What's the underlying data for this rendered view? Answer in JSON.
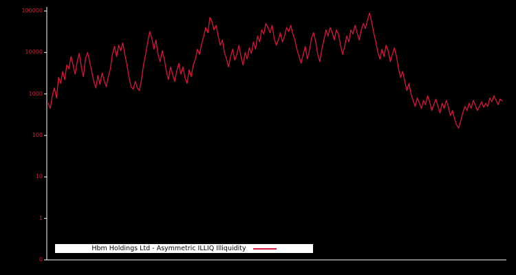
{
  "chart_data": {
    "type": "line",
    "title": "",
    "legend_label": "Hbm Holdings Ltd - Asymmetric ILLIQ Illiquidity",
    "legend_position": "bottom-left",
    "grid": false,
    "y_scale": "log",
    "ylim": [
      0.1,
      100000
    ],
    "y_tick_labels": [
      "100000",
      "10000",
      "1000",
      "100",
      "10",
      "1",
      "0"
    ],
    "y_tick_values": [
      100000,
      10000,
      1000,
      100,
      10,
      1,
      0.1
    ],
    "x_tick_labels": [],
    "xlabel": "",
    "ylabel": "",
    "colors": {
      "background": "#000000",
      "line": "#dc143c",
      "tick_label": "#d42032",
      "axis": "#ffffff",
      "legend_bg": "#ffffff",
      "legend_text": "#000000"
    },
    "values": [
      600,
      450,
      900,
      1400,
      800,
      2500,
      1800,
      3500,
      2200,
      5000,
      4000,
      8000,
      5000,
      3000,
      6000,
      9500,
      4500,
      2600,
      7000,
      10000,
      6000,
      3500,
      2000,
      1400,
      2800,
      1700,
      3200,
      2100,
      1500,
      2600,
      4000,
      9000,
      14000,
      8000,
      15000,
      11000,
      17000,
      9000,
      5000,
      2500,
      1500,
      1300,
      2000,
      1400,
      1200,
      2200,
      5000,
      9000,
      18000,
      32000,
      22000,
      12000,
      20000,
      9000,
      6000,
      11000,
      7000,
      3500,
      2200,
      4500,
      3000,
      2000,
      3500,
      5500,
      3000,
      4500,
      2500,
      1800,
      3800,
      2600,
      5000,
      7000,
      12000,
      9000,
      16000,
      24000,
      40000,
      30000,
      70000,
      55000,
      35000,
      45000,
      25000,
      15000,
      20000,
      10000,
      7000,
      4500,
      8000,
      12000,
      6500,
      9000,
      15000,
      8000,
      5000,
      10000,
      7000,
      13000,
      9500,
      18000,
      12000,
      25000,
      18000,
      35000,
      28000,
      50000,
      40000,
      30000,
      45000,
      22000,
      15000,
      20000,
      30000,
      18000,
      25000,
      40000,
      32000,
      45000,
      28000,
      20000,
      12000,
      8000,
      5500,
      9000,
      14000,
      7000,
      11000,
      22000,
      30000,
      18000,
      9000,
      6000,
      12000,
      20000,
      35000,
      25000,
      40000,
      30000,
      20000,
      35000,
      28000,
      15000,
      9000,
      14000,
      25000,
      18000,
      35000,
      28000,
      45000,
      30000,
      20000,
      35000,
      50000,
      38000,
      60000,
      90000,
      55000,
      30000,
      18000,
      10000,
      7000,
      12000,
      8000,
      15000,
      11000,
      6000,
      9000,
      13000,
      8000,
      4000,
      2500,
      3500,
      2000,
      1200,
      1800,
      1000,
      700,
      500,
      800,
      600,
      450,
      700,
      550,
      900,
      650,
      400,
      550,
      750,
      500,
      350,
      600,
      450,
      700,
      500,
      300,
      400,
      250,
      180,
      150,
      220,
      350,
      500,
      400,
      600,
      450,
      700,
      550,
      400,
      500,
      650,
      480,
      600,
      500,
      800,
      650,
      900,
      700,
      550,
      750,
      680
    ]
  }
}
